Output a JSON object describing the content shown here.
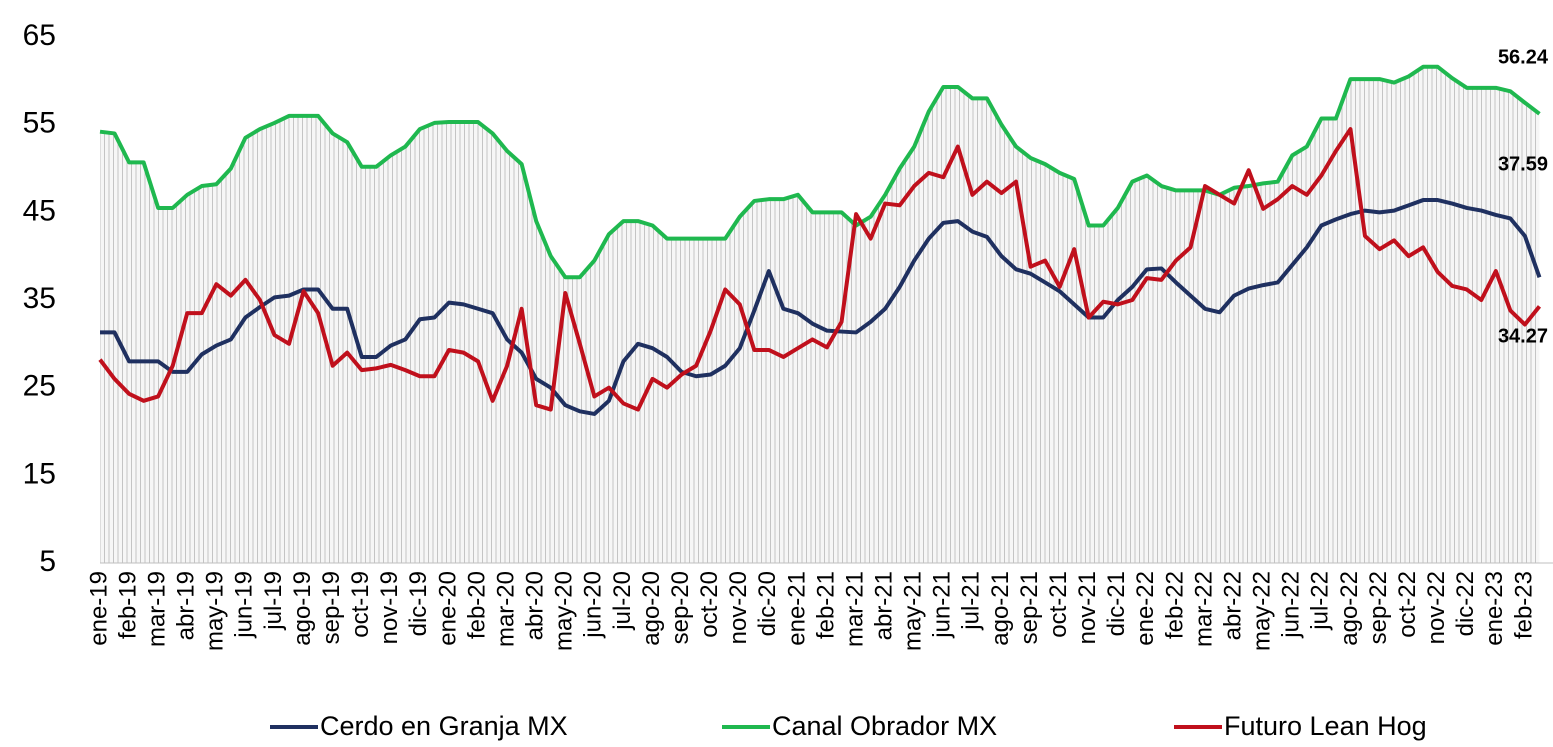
{
  "chart_data": {
    "type": "line",
    "categories": [
      "ene-19",
      null,
      "feb-19",
      null,
      "mar-19",
      null,
      "abr-19",
      null,
      "may-19",
      null,
      "jun-19",
      null,
      "jul-19",
      null,
      "ago-19",
      null,
      "sep-19",
      null,
      "oct-19",
      null,
      "nov-19",
      null,
      "dic-19",
      null,
      "ene-20",
      null,
      "feb-20",
      null,
      "mar-20",
      null,
      "abr-20",
      null,
      "may-20",
      null,
      "jun-20",
      null,
      "jul-20",
      null,
      "ago-20",
      null,
      "sep-20",
      null,
      "oct-20",
      null,
      "nov-20",
      null,
      "dic-20",
      null,
      "ene-21",
      null,
      "feb-21",
      null,
      "mar-21",
      null,
      "abr-21",
      null,
      "may-21",
      null,
      "jun-21",
      null,
      "jul-21",
      null,
      "ago-21",
      null,
      "sep-21",
      null,
      "oct-21",
      null,
      "nov-21",
      null,
      "dic-21",
      null,
      "ene-22",
      null,
      "feb-22",
      null,
      "mar-22",
      null,
      "abr-22",
      null,
      "may-22",
      null,
      "jun-22",
      null,
      "jul-22",
      null,
      "ago-22",
      null,
      "sep-22",
      null,
      "oct-22",
      null,
      "nov-22",
      null,
      "dic-22",
      null,
      "ene-23",
      null,
      "feb-23",
      null
    ],
    "series": [
      {
        "name": "Cerdo en Granja MX",
        "color": "#1f3060",
        "values": [
          31.3,
          31.3,
          28,
          28,
          28,
          26.8,
          26.8,
          28.8,
          29.8,
          30.5,
          33,
          34.2,
          35.3,
          35.5,
          36.2,
          36.2,
          34,
          34,
          28.5,
          28.5,
          29.8,
          30.5,
          32.8,
          33,
          34.7,
          34.5,
          34,
          33.5,
          30.5,
          29,
          26,
          25,
          23,
          22.3,
          22,
          23.5,
          28,
          30,
          29.5,
          28.5,
          26.8,
          26.3,
          26.5,
          27.5,
          29.5,
          33.8,
          38.3,
          34,
          33.5,
          32.3,
          31.5,
          31.4,
          31.3,
          32.5,
          34,
          36.5,
          39.5,
          42,
          43.8,
          44,
          42.8,
          42.2,
          40,
          38.5,
          38,
          37,
          36,
          34.5,
          33,
          33,
          35,
          36.5,
          38.5,
          38.6,
          37,
          35.5,
          34,
          33.6,
          35.5,
          36.3,
          36.7,
          37,
          39,
          41,
          43.5,
          44.2,
          44.8,
          45.2,
          45,
          45.2,
          45.8,
          46.4,
          46.4,
          46,
          45.5,
          45.2,
          44.7,
          44.3,
          42.3,
          37.59
        ]
      },
      {
        "name": "Canal Obrador MX",
        "color": "#1fb84f",
        "values": [
          54.2,
          54,
          50.7,
          50.7,
          45.5,
          45.5,
          47,
          48,
          48.2,
          50,
          53.5,
          54.5,
          55.2,
          56,
          56,
          56,
          54,
          53,
          50.2,
          50.2,
          51.5,
          52.5,
          54.5,
          55.2,
          55.3,
          55.3,
          55.3,
          54,
          52,
          50.5,
          44,
          40,
          37.6,
          37.6,
          39.5,
          42.5,
          44,
          44,
          43.5,
          42,
          42,
          42,
          42,
          42,
          44.5,
          46.3,
          46.5,
          46.5,
          47,
          45,
          45,
          45,
          43.5,
          44.5,
          47,
          50,
          52.5,
          56.5,
          59.3,
          59.3,
          58,
          58,
          55,
          52.5,
          51.2,
          50.5,
          49.5,
          48.8,
          43.5,
          43.5,
          45.5,
          48.5,
          49.2,
          48,
          47.5,
          47.5,
          47.5,
          47,
          47.8,
          48,
          48.3,
          48.5,
          51.5,
          52.5,
          55.7,
          55.7,
          60.2,
          60.2,
          60.2,
          59.8,
          60.5,
          61.6,
          61.6,
          60.3,
          59.2,
          59.2,
          59.2,
          58.8,
          57.5,
          56.24
        ]
      },
      {
        "name": "Futuro Lean Hog",
        "color": "#c0101c",
        "values": [
          28.2,
          26,
          24.3,
          23.5,
          24,
          27.5,
          33.5,
          33.5,
          36.8,
          35.5,
          37.3,
          35,
          31,
          30,
          36,
          33.5,
          27.5,
          29,
          27,
          27.2,
          27.6,
          27,
          26.3,
          26.3,
          29.3,
          29,
          28,
          23.5,
          27.5,
          34,
          23,
          22.5,
          35.8,
          30,
          24,
          25,
          23.2,
          22.5,
          26,
          25,
          26.5,
          27.5,
          31.5,
          36.2,
          34.5,
          29.3,
          29.3,
          28.5,
          29.5,
          30.5,
          29.6,
          32.5,
          44.8,
          42,
          46,
          45.8,
          48,
          49.5,
          49,
          52.5,
          47,
          48.5,
          47.2,
          48.5,
          38.8,
          39.5,
          36.5,
          40.8,
          33,
          34.8,
          34.5,
          35,
          37.5,
          37.3,
          39.5,
          41,
          48,
          47,
          46,
          49.8,
          45.4,
          46.5,
          48,
          47,
          49.2,
          52,
          54.5,
          42.3,
          40.8,
          41.8,
          40,
          41,
          38.2,
          36.6,
          36.2,
          35,
          38.3,
          33.8,
          32.2,
          34.27
        ]
      }
    ],
    "ylim": [
      5,
      65
    ],
    "yticks": [
      5,
      15,
      25,
      35,
      45,
      55,
      65
    ],
    "grid": false,
    "area_series": 1,
    "legend": "bottom"
  }
}
